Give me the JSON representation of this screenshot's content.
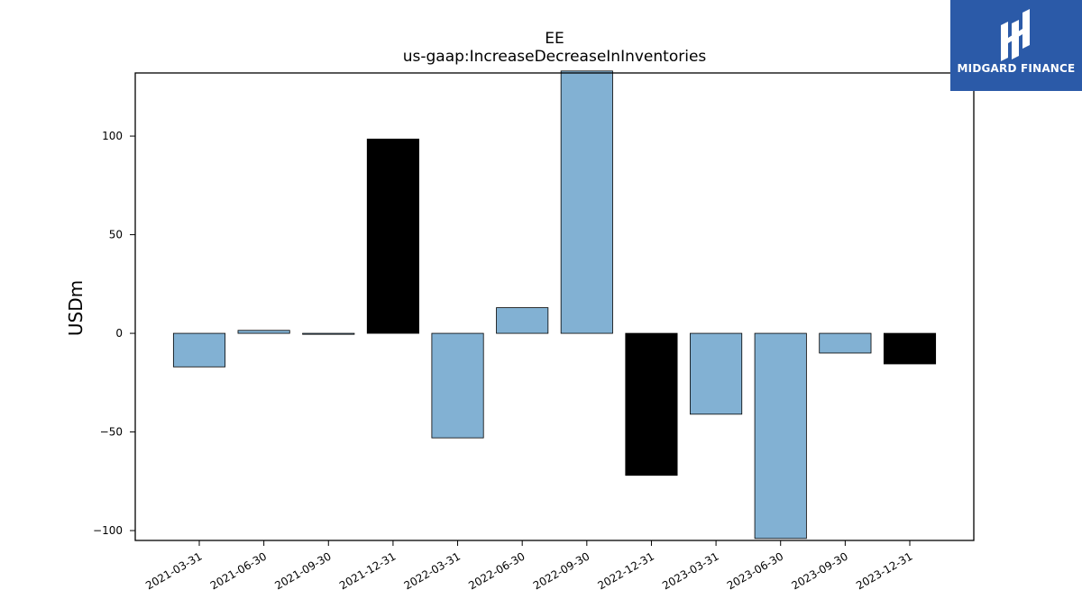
{
  "chart_data": {
    "type": "bar",
    "title": "EE",
    "subtitle": "us-gaap:IncreaseDecreaseInInventories",
    "xlabel": "",
    "ylabel": "USDm",
    "categories": [
      "2021-03-31",
      "2021-06-30",
      "2021-09-30",
      "2021-12-31",
      "2022-03-31",
      "2022-06-30",
      "2022-09-30",
      "2022-12-31",
      "2023-03-31",
      "2023-06-30",
      "2023-09-30",
      "2023-12-31"
    ],
    "values": [
      -17,
      1.5,
      -0.5,
      98.5,
      -53,
      13,
      133,
      -72,
      -41,
      -104,
      -10,
      -15.5
    ],
    "bar_colors": [
      "#82b1d3",
      "#82b1d3",
      "#82b1d3",
      "#000000",
      "#82b1d3",
      "#82b1d3",
      "#82b1d3",
      "#000000",
      "#82b1d3",
      "#82b1d3",
      "#82b1d3",
      "#000000"
    ],
    "ylim": [
      -105,
      132
    ],
    "yticks": [
      -100,
      -50,
      0,
      50,
      100
    ],
    "yticklabels": [
      "−100",
      "−50",
      "0",
      "50",
      "100"
    ],
    "grid": false,
    "legend": "none"
  },
  "logo": {
    "text": "MIDGARD FINANCE",
    "background": "#2b5aa8"
  }
}
